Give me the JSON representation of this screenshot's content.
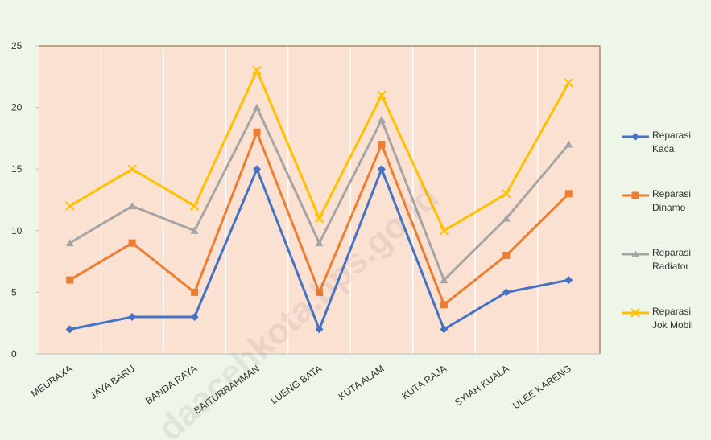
{
  "chart_data": {
    "type": "line",
    "categories": [
      "MEURAXA",
      "JAYA BARU",
      "BANDA RAYA",
      "BAITURRAHMAN",
      "LUENG BATA",
      "KUTA ALAM",
      "KUTA RAJA",
      "SYIAH KUALA",
      "ULEE KARENG"
    ],
    "series": [
      {
        "name": "Reparasi Kaca",
        "color": "#4472c4",
        "marker": "diamond",
        "values": [
          2,
          3,
          3,
          15,
          2,
          15,
          2,
          5,
          6
        ]
      },
      {
        "name": "Reparasi Dinamo",
        "color": "#ed7d31",
        "marker": "square",
        "values": [
          6,
          9,
          5,
          18,
          5,
          17,
          4,
          8,
          13
        ]
      },
      {
        "name": "Reparasi Radiator",
        "color": "#a5a5a5",
        "marker": "triangle",
        "values": [
          9,
          12,
          10,
          20,
          9,
          19,
          6,
          11,
          17
        ]
      },
      {
        "name": "Reparasi Jok Mobil",
        "color": "#ffc000",
        "marker": "x",
        "values": [
          12,
          15,
          12,
          23,
          11,
          21,
          10,
          13,
          22
        ]
      }
    ],
    "ylim": [
      0,
      25
    ],
    "yticks": [
      0,
      5,
      10,
      15,
      20,
      25
    ],
    "grid": true,
    "legend": "right",
    "watermark": "daacehkota.bps.go.id"
  }
}
